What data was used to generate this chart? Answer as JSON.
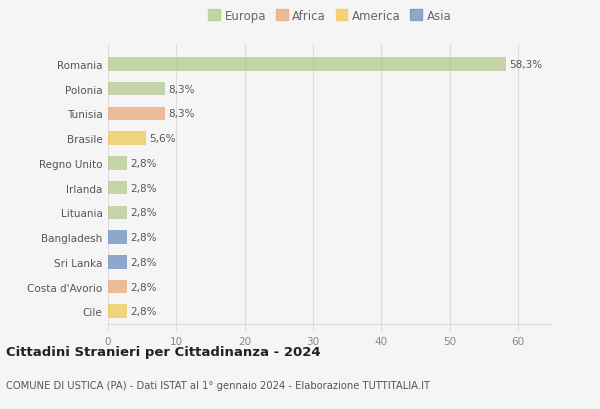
{
  "categories": [
    "Romania",
    "Polonia",
    "Tunisia",
    "Brasile",
    "Regno Unito",
    "Irlanda",
    "Lituania",
    "Bangladesh",
    "Sri Lanka",
    "Costa d'Avorio",
    "Cile"
  ],
  "values": [
    58.3,
    8.3,
    8.3,
    5.6,
    2.8,
    2.8,
    2.8,
    2.8,
    2.8,
    2.8,
    2.8
  ],
  "labels": [
    "58,3%",
    "8,3%",
    "8,3%",
    "5,6%",
    "2,8%",
    "2,8%",
    "2,8%",
    "2,8%",
    "2,8%",
    "2,8%",
    "2,8%"
  ],
  "colors": [
    "#b5c98e",
    "#b5c98e",
    "#e8a87c",
    "#f0c855",
    "#b5c98e",
    "#b5c98e",
    "#b5c98e",
    "#6b8fbf",
    "#6b8fbf",
    "#e8a87c",
    "#f0c855"
  ],
  "legend_labels": [
    "Europa",
    "Africa",
    "America",
    "Asia"
  ],
  "legend_colors": [
    "#b5c98e",
    "#e8a87c",
    "#f0c855",
    "#6b8fbf"
  ],
  "xlim": [
    0,
    65
  ],
  "xticks": [
    0,
    10,
    20,
    30,
    40,
    50,
    60
  ],
  "title": "Cittadini Stranieri per Cittadinanza - 2024",
  "subtitle": "COMUNE DI USTICA (PA) - Dati ISTAT al 1° gennaio 2024 - Elaborazione TUTTITALIA.IT",
  "background_color": "#f5f5f5",
  "plot_bg_color": "#f5f5f5",
  "grid_color": "#dddddd",
  "bar_height": 0.55
}
